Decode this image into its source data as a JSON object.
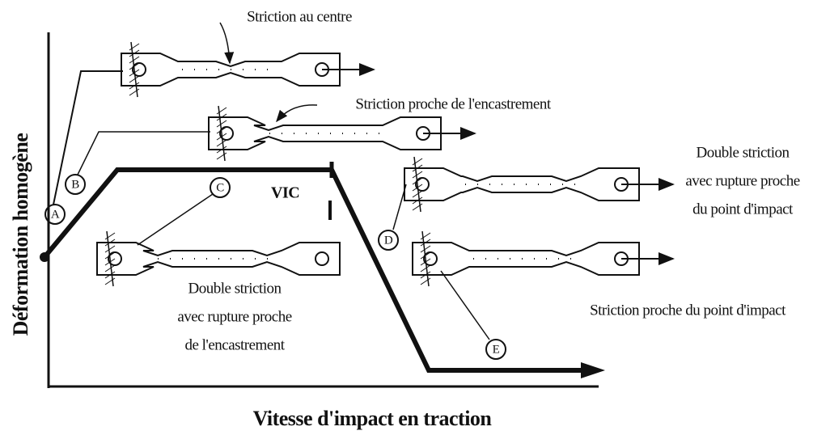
{
  "axes": {
    "x_label": "Vitesse d'impact en traction",
    "y_label": "Déformation homogène"
  },
  "curve_label": "VIC",
  "markers": [
    "A",
    "B",
    "C",
    "D",
    "E"
  ],
  "annotations": {
    "center": "Striction au centre",
    "near_clamp": "Striction proche de l'encastrement",
    "double_impact": [
      "Double striction",
      "avec rupture proche",
      "du point d'impact"
    ],
    "near_impact": "Striction proche du point d'impact",
    "double_clamp": [
      "Double striction",
      "avec rupture proche",
      "de l'encastrement"
    ]
  }
}
